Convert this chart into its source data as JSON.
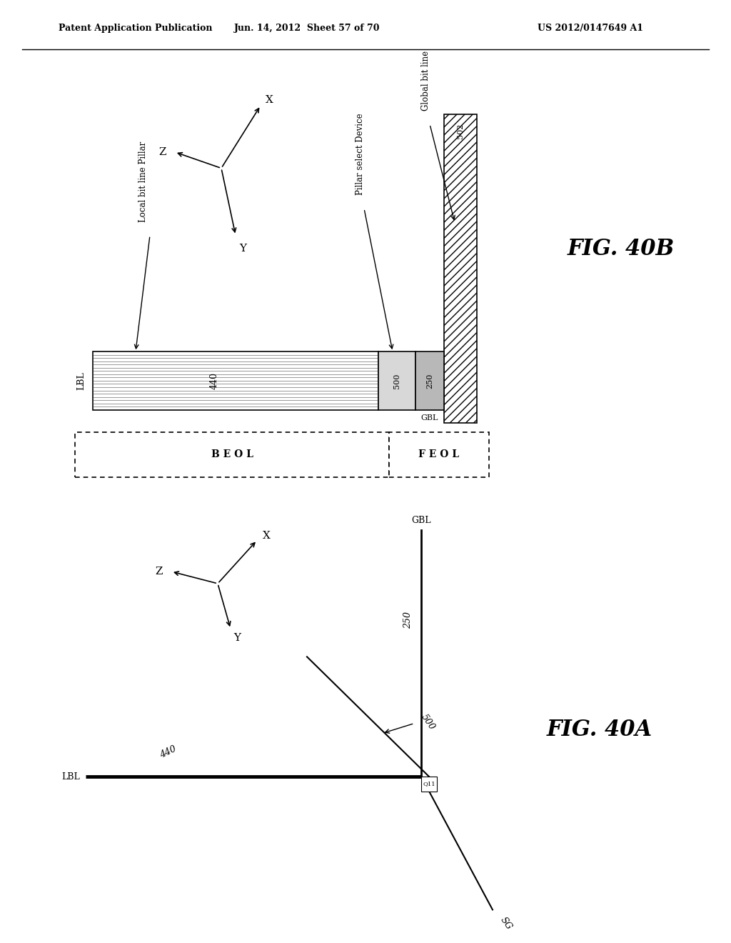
{
  "header_left": "Patent Application Publication",
  "header_center": "Jun. 14, 2012  Sheet 57 of 70",
  "header_right": "US 2012/0147649 A1",
  "fig40b": {
    "label": "FIG. 40B",
    "lbl_label": "LBL",
    "lbl_440": "440",
    "lbl_500": "500",
    "lbl_250": "250",
    "lbl_502": "502",
    "lbl_gbl": "GBL",
    "lbl_local": "Local bit line Pillar",
    "lbl_pillar": "Pillar select Device",
    "lbl_global": "Global bit line",
    "lbl_beol": "B E O L",
    "lbl_feol": "F E O L",
    "axis_x": "X",
    "axis_y": "Y",
    "axis_z": "Z"
  },
  "fig40a": {
    "label": "FIG. 40A",
    "lbl_label": "LBL",
    "lbl_440": "440",
    "lbl_500": "500",
    "lbl_250": "250",
    "lbl_gbl": "GBL",
    "lbl_q11": "Q11",
    "lbl_sg": "SG",
    "axis_x": "X",
    "axis_y": "Y",
    "axis_z": "Z"
  },
  "bg_color": "#ffffff"
}
